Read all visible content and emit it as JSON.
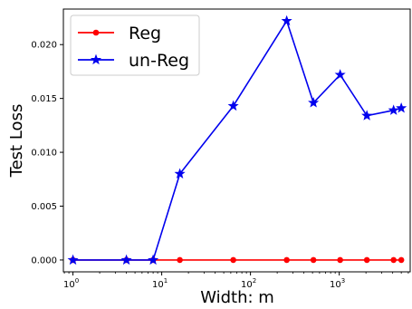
{
  "chart_data": {
    "type": "line",
    "xlabel": "Width: m",
    "ylabel": "Test Loss",
    "xscale": "log",
    "xlim": [
      0.78,
      6300
    ],
    "ylim": [
      -0.0011,
      0.0233
    ],
    "grid": false,
    "legend_position": "top-left",
    "x_ticks": [
      {
        "value": 1,
        "base": "10",
        "exp": "0"
      },
      {
        "value": 10,
        "base": "10",
        "exp": "1"
      },
      {
        "value": 100,
        "base": "10",
        "exp": "2"
      },
      {
        "value": 1000,
        "base": "10",
        "exp": "3"
      }
    ],
    "y_ticks": [
      {
        "value": 0.0,
        "label": "0.000"
      },
      {
        "value": 0.005,
        "label": "0.005"
      },
      {
        "value": 0.01,
        "label": "0.010"
      },
      {
        "value": 0.015,
        "label": "0.015"
      },
      {
        "value": 0.02,
        "label": "0.020"
      }
    ],
    "series": [
      {
        "name": "Reg",
        "color": "#ff0000",
        "marker": "circle",
        "x": [
          1,
          4,
          8,
          16,
          64,
          256,
          512,
          1024,
          2048,
          4096,
          5000
        ],
        "y": [
          0.0,
          0.0,
          0.0,
          0.0,
          0.0,
          0.0,
          0.0,
          0.0,
          0.0,
          0.0,
          0.0
        ]
      },
      {
        "name": "un-Reg",
        "color": "#0000ee",
        "marker": "star",
        "x": [
          1,
          4,
          8,
          16,
          64,
          256,
          512,
          1024,
          2048,
          4096,
          5000
        ],
        "y": [
          0.0,
          0.0,
          0.0,
          0.008,
          0.0143,
          0.0222,
          0.0146,
          0.0172,
          0.0134,
          0.0139,
          0.0141
        ]
      }
    ]
  }
}
